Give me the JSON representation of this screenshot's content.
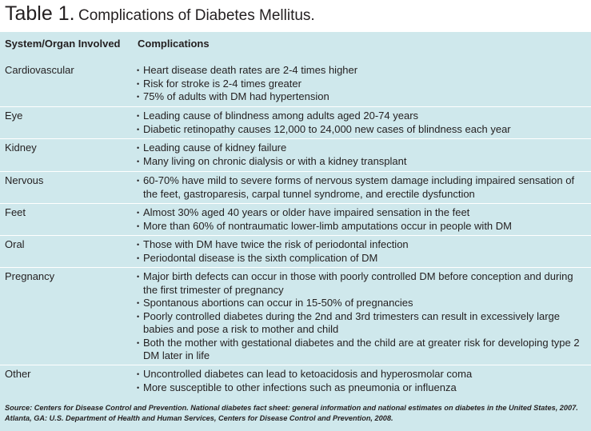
{
  "title": {
    "label": "Table 1.",
    "text": "Complications of Diabetes Mellitus."
  },
  "table": {
    "headers": [
      "System/Organ Involved",
      "Complications"
    ],
    "rows": [
      {
        "system": "Cardiovascular",
        "items": [
          "Heart disease death rates are 2-4 times higher",
          "Risk for stroke is 2-4 times greater",
          "75% of adults with DM had hypertension"
        ]
      },
      {
        "system": "Eye",
        "items": [
          "Leading cause of blindness among adults aged 20-74 years",
          "Diabetic retinopathy causes 12,000 to 24,000 new cases of blindness each year"
        ]
      },
      {
        "system": "Kidney",
        "items": [
          "Leading cause of kidney failure",
          "Many living on chronic dialysis or with a kidney transplant"
        ]
      },
      {
        "system": "Nervous",
        "items": [
          "60-70% have mild to severe forms of nervous system damage including impaired sensation of the feet, gastroparesis, carpal tunnel syndrome, and erectile dysfunction"
        ]
      },
      {
        "system": "Feet",
        "items": [
          "Almost 30% aged 40 years or older have impaired sensation in the feet",
          "More than 60% of nontraumatic lower-limb amputations occur in people with DM"
        ]
      },
      {
        "system": "Oral",
        "items": [
          "Those with DM have twice the risk of periodontal infection",
          "Periodontal disease is the sixth complication of DM"
        ]
      },
      {
        "system": "Pregnancy",
        "items": [
          "Major birth defects can occur in those with poorly controlled DM before conception and during the first trimester of pregnancy",
          "Spontanous abortions can occur in 15-50% of pregnancies",
          "Poorly controlled diabetes during the 2nd and 3rd trimesters can result in excessively large babies and pose a risk to mother and child",
          "Both the mother with gestational diabetes and the child are at greater risk for developing type 2 DM later in life"
        ]
      },
      {
        "system": "Other",
        "items": [
          "Uncontrolled diabetes can lead to ketoacidosis and hyperosmolar coma",
          "More susceptible to other infections such as pneumonia or influenza"
        ]
      }
    ]
  },
  "source": "Source: Centers for Disease Control and Prevention. National diabetes fact sheet: general information and national estimates on diabetes in the United States, 2007. Atlanta, GA: U.S. Department of Health and Human Services, Centers for Disease Control and Prevention, 2008.",
  "colors": {
    "panel": "#cfe8ec",
    "divider": "#ffffff",
    "text": "#231f20"
  }
}
